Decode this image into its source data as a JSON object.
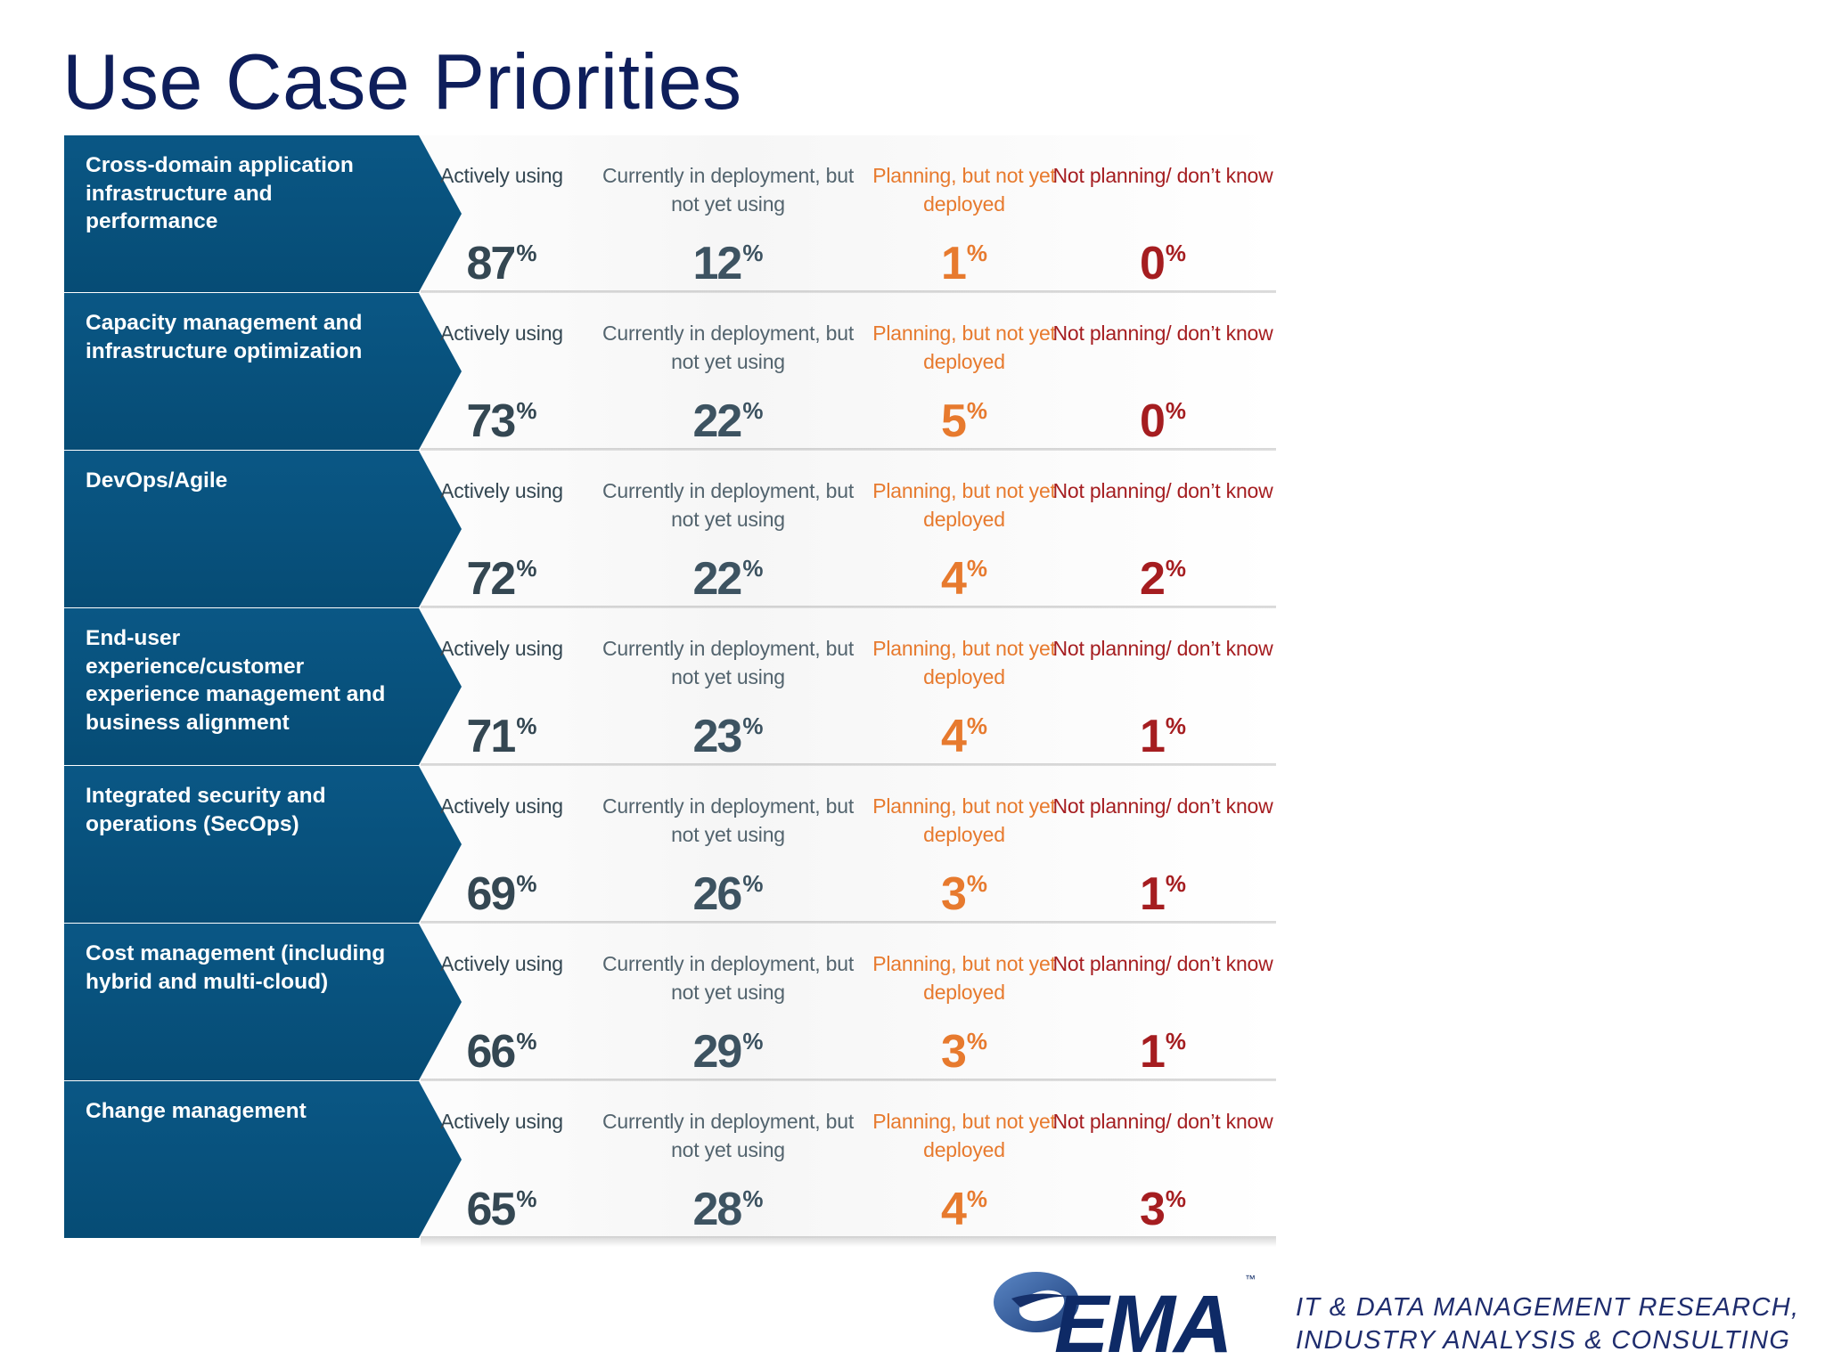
{
  "title": "Use Case Priorities",
  "column_labels": {
    "active": "Actively using",
    "deploy": "Currently in deployment, but not yet using",
    "plan": "Planning, but not yet deployed",
    "not": "Not planning/ don’t know"
  },
  "colors": {
    "row_label_bg": "#0a5785",
    "active": "#344752",
    "deploy": "#3d5361",
    "plan": "#e77a2e",
    "not": "#a51d20",
    "title": "#0e1e5b"
  },
  "chart_data": {
    "type": "table",
    "title": "Use Case Priorities",
    "unit": "%",
    "columns": [
      "Actively using",
      "Currently in deployment, but not yet using",
      "Planning, but not yet deployed",
      "Not planning/ don’t know"
    ],
    "rows": [
      {
        "label": "Cross-domain application infrastructure and performance",
        "values": [
          87,
          12,
          1,
          0
        ]
      },
      {
        "label": "Capacity management and infrastructure optimization",
        "values": [
          73,
          22,
          5,
          0
        ]
      },
      {
        "label": "DevOps/Agile",
        "values": [
          72,
          22,
          4,
          2
        ]
      },
      {
        "label": "End-user experience/customer experience management and business alignment",
        "values": [
          71,
          23,
          4,
          1
        ]
      },
      {
        "label": "Integrated security and operations (SecOps)",
        "values": [
          69,
          26,
          3,
          1
        ]
      },
      {
        "label": "Cost management (including hybrid and multi-cloud)",
        "values": [
          66,
          29,
          3,
          1
        ]
      },
      {
        "label": "Change management",
        "values": [
          65,
          28,
          4,
          3
        ]
      }
    ]
  },
  "logo": {
    "text": "EMA",
    "trademark": "™",
    "icon": "ema-swoosh-logo"
  },
  "tagline": {
    "line1": "IT & DATA MANAGEMENT RESEARCH,",
    "line2": "INDUSTRY ANALYSIS & CONSULTING"
  }
}
